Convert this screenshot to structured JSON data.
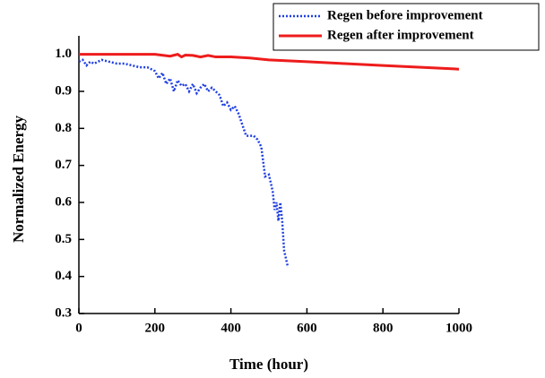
{
  "chart_data": {
    "type": "line",
    "xlabel": "Time (hour)",
    "ylabel": "Normalized Energy",
    "xlim": [
      0,
      1000
    ],
    "ylim": [
      0.3,
      1.05
    ],
    "xticks": [
      0,
      200,
      400,
      600,
      800,
      1000
    ],
    "yticks": [
      0.3,
      0.4,
      0.5,
      0.6,
      0.7,
      0.8,
      0.9,
      {
        "value": 1,
        "label": "1.0"
      }
    ],
    "legend": "upper right",
    "series": [
      {
        "name": "Regen before improvement",
        "color": "#1f3fe0",
        "style": "dotted",
        "x": [
          0,
          10,
          20,
          30,
          40,
          60,
          80,
          100,
          120,
          140,
          160,
          180,
          200,
          210,
          220,
          230,
          240,
          250,
          260,
          270,
          280,
          290,
          300,
          310,
          320,
          330,
          340,
          350,
          360,
          370,
          380,
          390,
          400,
          410,
          420,
          430,
          440,
          460,
          470,
          480,
          490,
          500,
          510,
          515,
          520,
          525,
          530,
          535,
          540,
          550
        ],
        "values": [
          0.98,
          0.985,
          0.97,
          0.98,
          0.975,
          0.985,
          0.98,
          0.975,
          0.975,
          0.97,
          0.965,
          0.965,
          0.955,
          0.935,
          0.95,
          0.92,
          0.935,
          0.9,
          0.93,
          0.915,
          0.92,
          0.9,
          0.92,
          0.895,
          0.91,
          0.92,
          0.9,
          0.91,
          0.9,
          0.89,
          0.86,
          0.87,
          0.85,
          0.86,
          0.84,
          0.81,
          0.78,
          0.78,
          0.77,
          0.75,
          0.67,
          0.675,
          0.63,
          0.58,
          0.6,
          0.55,
          0.6,
          0.55,
          0.47,
          0.425
        ]
      },
      {
        "name": "Regen after improvement",
        "color": "#ee1c1c",
        "style": "solid",
        "x": [
          0,
          100,
          200,
          240,
          260,
          270,
          280,
          300,
          320,
          340,
          360,
          400,
          450,
          500,
          600,
          700,
          800,
          900,
          1000
        ],
        "values": [
          1.0,
          1.0,
          1.0,
          0.995,
          1.0,
          0.993,
          0.998,
          0.997,
          0.993,
          0.997,
          0.993,
          0.993,
          0.99,
          0.985,
          0.98,
          0.975,
          0.97,
          0.965,
          0.96
        ]
      }
    ]
  }
}
